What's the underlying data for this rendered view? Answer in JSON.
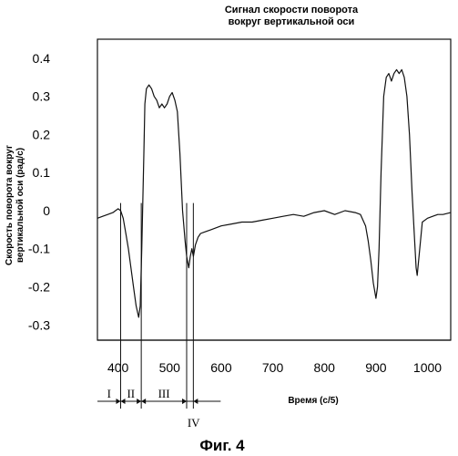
{
  "chart_data": {
    "type": "line",
    "title_lines": [
      "Сигнал скорости поворота",
      "вокруг вертикальной оси"
    ],
    "ylabel_lines": [
      "Скорость поворота вокруг",
      "вертикальной оси (рад/с)"
    ],
    "xlabel": "Время (с/5)",
    "xlim": [
      360,
      1045
    ],
    "ylim": [
      -0.34,
      0.45
    ],
    "x_ticks": [
      400,
      500,
      600,
      700,
      800,
      900,
      1000
    ],
    "y_ticks": [
      0.4,
      0.3,
      0.2,
      0.1,
      0,
      -0.1,
      -0.2,
      -0.3
    ],
    "grid": false,
    "legend": "none",
    "series": [
      {
        "color": "#111111",
        "x": [
          360,
          370,
          380,
          390,
          400,
          405,
          410,
          415,
          420,
          425,
          430,
          435,
          440,
          443,
          446,
          450,
          452,
          455,
          460,
          465,
          470,
          475,
          480,
          485,
          490,
          495,
          500,
          505,
          510,
          515,
          520,
          525,
          530,
          533,
          537,
          540,
          543,
          546,
          550,
          555,
          560,
          570,
          580,
          600,
          620,
          640,
          660,
          680,
          700,
          720,
          740,
          760,
          780,
          800,
          820,
          840,
          860,
          870,
          880,
          885,
          890,
          895,
          900,
          903,
          906,
          910,
          915,
          920,
          925,
          930,
          935,
          940,
          945,
          950,
          955,
          960,
          965,
          970,
          975,
          978,
          980,
          985,
          990,
          1000,
          1010,
          1020,
          1030,
          1045
        ],
        "y": [
          -0.02,
          -0.015,
          -0.01,
          -0.005,
          0.005,
          0.0,
          -0.02,
          -0.06,
          -0.1,
          -0.15,
          -0.2,
          -0.25,
          -0.28,
          -0.25,
          -0.1,
          0.15,
          0.28,
          0.32,
          0.33,
          0.32,
          0.3,
          0.29,
          0.27,
          0.28,
          0.27,
          0.28,
          0.3,
          0.31,
          0.29,
          0.26,
          0.15,
          0.0,
          -0.08,
          -0.12,
          -0.15,
          -0.12,
          -0.1,
          -0.12,
          -0.09,
          -0.07,
          -0.06,
          -0.055,
          -0.05,
          -0.04,
          -0.035,
          -0.03,
          -0.03,
          -0.025,
          -0.02,
          -0.015,
          -0.01,
          -0.015,
          -0.005,
          0.0,
          -0.01,
          0.0,
          -0.005,
          -0.01,
          -0.04,
          -0.08,
          -0.13,
          -0.19,
          -0.23,
          -0.2,
          -0.1,
          0.1,
          0.3,
          0.35,
          0.36,
          0.34,
          0.36,
          0.37,
          0.36,
          0.37,
          0.35,
          0.3,
          0.2,
          0.05,
          -0.08,
          -0.15,
          -0.17,
          -0.1,
          -0.03,
          -0.02,
          -0.015,
          -0.01,
          -0.01,
          -0.005
        ]
      }
    ],
    "regions": [
      {
        "label": "I",
        "x_start": 360,
        "x_end": 405
      },
      {
        "label": "II",
        "x_start": 405,
        "x_end": 445
      },
      {
        "label": "III",
        "x_start": 445,
        "x_end": 533
      },
      {
        "label": "IV",
        "x_start": 533,
        "x_end": 546
      }
    ],
    "region_markers": [
      405,
      445,
      533,
      546
    ],
    "caption": "Фиг. 4"
  }
}
